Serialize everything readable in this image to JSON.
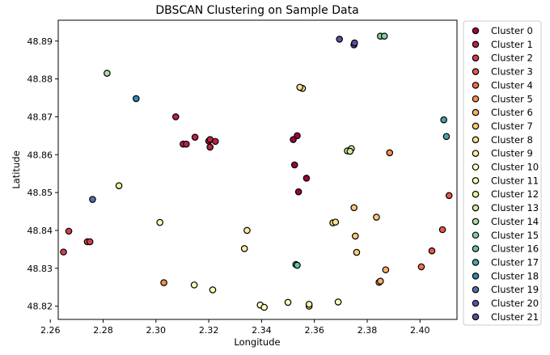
{
  "chart_data": {
    "type": "scatter",
    "title": "DBSCAN Clustering on Sample Data",
    "xlabel": "Longitude",
    "ylabel": "Latitude",
    "xlim": [
      2.263,
      2.414
    ],
    "ylim": [
      48.8165,
      48.8955
    ],
    "xticks": [
      2.26,
      2.28,
      2.3,
      2.32,
      2.34,
      2.36,
      2.38,
      2.4
    ],
    "xtick_labels": [
      "2.26",
      "2.28",
      "2.30",
      "2.32",
      "2.34",
      "2.36",
      "2.38",
      "2.40"
    ],
    "yticks": [
      48.82,
      48.83,
      48.84,
      48.85,
      48.86,
      48.87,
      48.88,
      48.89
    ],
    "ytick_labels": [
      "48.82",
      "48.83",
      "48.84",
      "48.85",
      "48.86",
      "48.87",
      "48.88",
      "48.89"
    ],
    "grid": false,
    "legend_position": "outside-right",
    "marker_edge_color": "#000000",
    "series": [
      {
        "name": "Cluster 0",
        "color": "#9e0142",
        "points": [
          [
            2.352,
            48.864
          ],
          [
            2.3535,
            48.865
          ],
          [
            2.3525,
            48.8573
          ],
          [
            2.357,
            48.8538
          ],
          [
            2.354,
            48.8502
          ]
        ]
      },
      {
        "name": "Cluster 1",
        "color": "#be2145",
        "points": [
          [
            2.3075,
            48.87
          ],
          [
            2.3103,
            48.8628
          ],
          [
            2.3115,
            48.8628
          ],
          [
            2.3148,
            48.8646
          ],
          [
            2.32,
            48.8636
          ],
          [
            2.3205,
            48.864
          ],
          [
            2.3205,
            48.862
          ],
          [
            2.3225,
            48.8635
          ]
        ]
      },
      {
        "name": "Cluster 2",
        "color": "#d53e4f",
        "points": [
          [
            2.265,
            48.8343
          ],
          [
            2.267,
            48.8398
          ],
          [
            2.274,
            48.837
          ],
          [
            2.275,
            48.837
          ]
        ]
      },
      {
        "name": "Cluster 3",
        "color": "#e55749",
        "points": [
          [
            2.411,
            48.8492
          ],
          [
            2.4085,
            48.8402
          ],
          [
            2.4045,
            48.8346
          ]
        ]
      },
      {
        "name": "Cluster 4",
        "color": "#f46d43",
        "points": [
          [
            2.4005,
            48.8304
          ]
        ]
      },
      {
        "name": "Cluster 5",
        "color": "#f88c51",
        "points": [
          [
            2.303,
            48.8262
          ],
          [
            2.3885,
            48.8605
          ]
        ]
      },
      {
        "name": "Cluster 6",
        "color": "#fdae61",
        "points": [
          [
            2.387,
            48.8296
          ],
          [
            2.3845,
            48.8263
          ],
          [
            2.385,
            48.8266
          ]
        ]
      },
      {
        "name": "Cluster 7",
        "color": "#fdc877",
        "points": [
          [
            2.376,
            48.8342
          ],
          [
            2.3755,
            48.8385
          ],
          [
            2.3835,
            48.8435
          ],
          [
            2.375,
            48.846
          ]
        ]
      },
      {
        "name": "Cluster 8",
        "color": "#fee08b",
        "points": [
          [
            2.3555,
            48.8775
          ],
          [
            2.3545,
            48.8778
          ],
          [
            2.367,
            48.842
          ],
          [
            2.368,
            48.8422
          ]
        ]
      },
      {
        "name": "Cluster 9",
        "color": "#feeda1",
        "points": [
          [
            2.3335,
            48.8352
          ],
          [
            2.3345,
            48.84
          ],
          [
            2.358,
            48.82
          ],
          [
            2.358,
            48.8205
          ]
        ]
      },
      {
        "name": "Cluster 10",
        "color": "#ffffbf",
        "points": [
          [
            2.3395,
            48.8203
          ],
          [
            2.341,
            48.8197
          ],
          [
            2.35,
            48.821
          ],
          [
            2.369,
            48.8211
          ]
        ]
      },
      {
        "name": "Cluster 11",
        "color": "#f8fcb4",
        "points": [
          [
            2.3015,
            48.8421
          ],
          [
            2.3145,
            48.8256
          ],
          [
            2.3215,
            48.8243
          ]
        ]
      },
      {
        "name": "Cluster 12",
        "color": "#e6f598",
        "points": [
          [
            2.286,
            48.8518
          ]
        ]
      },
      {
        "name": "Cluster 13",
        "color": "#cfec9d",
        "points": [
          [
            2.3725,
            48.861
          ],
          [
            2.374,
            48.8616
          ],
          [
            2.3735,
            48.8609
          ]
        ]
      },
      {
        "name": "Cluster 14",
        "color": "#abdda4",
        "points": [
          [
            2.2815,
            48.8815
          ]
        ]
      },
      {
        "name": "Cluster 15",
        "color": "#88cfa4",
        "points": [
          [
            2.385,
            48.8913
          ],
          [
            2.3865,
            48.8913
          ]
        ]
      },
      {
        "name": "Cluster 16",
        "color": "#66c2a5",
        "points": [
          [
            2.353,
            48.831
          ],
          [
            2.3535,
            48.8308
          ]
        ]
      },
      {
        "name": "Cluster 17",
        "color": "#4ba4b1",
        "points": [
          [
            2.409,
            48.8692
          ],
          [
            2.41,
            48.8648
          ]
        ]
      },
      {
        "name": "Cluster 18",
        "color": "#3288bd",
        "points": [
          [
            2.2925,
            48.8748
          ]
        ]
      },
      {
        "name": "Cluster 19",
        "color": "#4f71b2",
        "points": [
          [
            2.276,
            48.8482
          ]
        ]
      },
      {
        "name": "Cluster 20",
        "color": "#5e4fa2",
        "points": [
          [
            2.375,
            48.889
          ],
          [
            2.3752,
            48.8895
          ]
        ]
      },
      {
        "name": "Cluster 21",
        "color": "#5e4fa2",
        "points": [
          [
            2.3695,
            48.8905
          ]
        ]
      }
    ]
  }
}
